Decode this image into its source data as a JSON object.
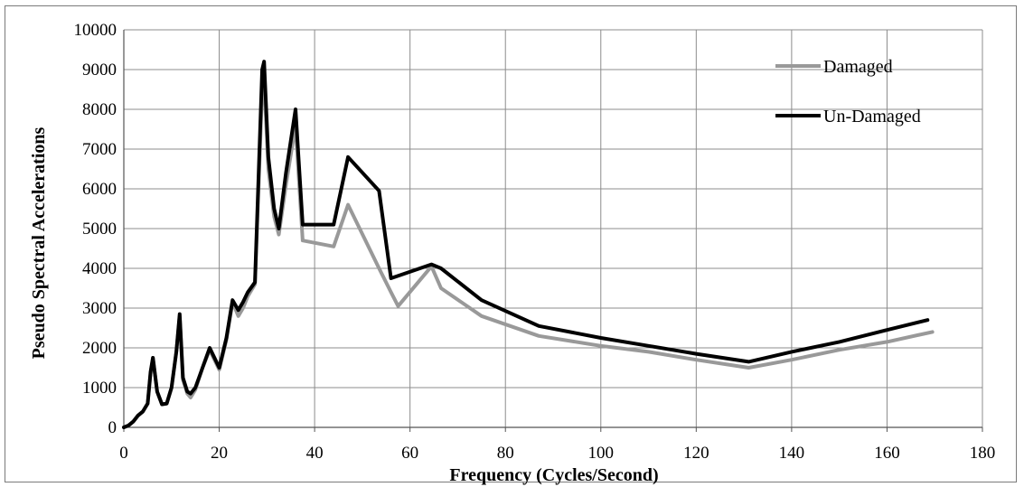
{
  "chart_data": {
    "type": "line",
    "xlabel": "Frequency (Cycles/Second)",
    "ylabel": "Pseudo Spectral Accelerations",
    "xlim": [
      0,
      180
    ],
    "ylim": [
      0,
      10000
    ],
    "xticks": [
      0,
      20,
      40,
      60,
      80,
      100,
      120,
      140,
      160,
      180
    ],
    "yticks": [
      0,
      1000,
      2000,
      3000,
      4000,
      5000,
      6000,
      7000,
      8000,
      9000,
      10000
    ],
    "grid": true,
    "legend_position": "top-right",
    "series": [
      {
        "name": "Damaged",
        "color": "#999999",
        "x": [
          0,
          1,
          2,
          3,
          4,
          5,
          5.6,
          6.1,
          7,
          8,
          9,
          10,
          11,
          11.7,
          12.4,
          13.3,
          14,
          15,
          16.5,
          18,
          19,
          20,
          21.5,
          22.8,
          24,
          25,
          26,
          27.5,
          29,
          29.4,
          30.3,
          31.5,
          32.5,
          34,
          36,
          37.5,
          44,
          47,
          53.5,
          56,
          57.5,
          64.5,
          66.5,
          75,
          87,
          100,
          110,
          120,
          131,
          140,
          150,
          160,
          169.5
        ],
        "y": [
          0,
          50,
          150,
          300,
          400,
          600,
          1350,
          1750,
          900,
          580,
          600,
          1000,
          1900,
          2800,
          1200,
          850,
          750,
          950,
          1500,
          1950,
          1700,
          1450,
          2200,
          3150,
          2800,
          3000,
          3300,
          3600,
          8500,
          8750,
          6500,
          5300,
          4850,
          6100,
          7600,
          4700,
          4550,
          5600,
          4000,
          3400,
          3050,
          4050,
          3500,
          2800,
          2300,
          2050,
          1900,
          1700,
          1500,
          1700,
          1950,
          2150,
          2400
        ]
      },
      {
        "name": "Un-Damaged",
        "color": "#000000",
        "x": [
          0,
          1,
          2,
          3,
          4,
          5,
          5.6,
          6.1,
          7,
          8,
          9,
          10,
          11,
          11.7,
          12.4,
          13.3,
          14,
          15,
          16.5,
          18,
          19,
          20,
          21.5,
          22.8,
          24,
          25,
          26,
          27.5,
          29,
          29.4,
          30.3,
          31.5,
          32.5,
          34,
          36,
          37.5,
          44,
          47,
          53.5,
          56,
          64.5,
          66.5,
          75,
          87,
          100,
          110,
          120,
          131,
          140,
          150,
          160,
          168.5
        ],
        "y": [
          0,
          50,
          150,
          300,
          400,
          600,
          1400,
          1750,
          900,
          580,
          600,
          1000,
          1900,
          2850,
          1250,
          900,
          850,
          1000,
          1500,
          2000,
          1750,
          1500,
          2250,
          3200,
          2950,
          3150,
          3400,
          3650,
          9000,
          9200,
          6800,
          5500,
          5000,
          6400,
          8000,
          5100,
          5100,
          6800,
          5950,
          3750,
          4100,
          4000,
          3200,
          2550,
          2250,
          2050,
          1850,
          1650,
          1900,
          2150,
          2450,
          2700
        ]
      }
    ]
  }
}
